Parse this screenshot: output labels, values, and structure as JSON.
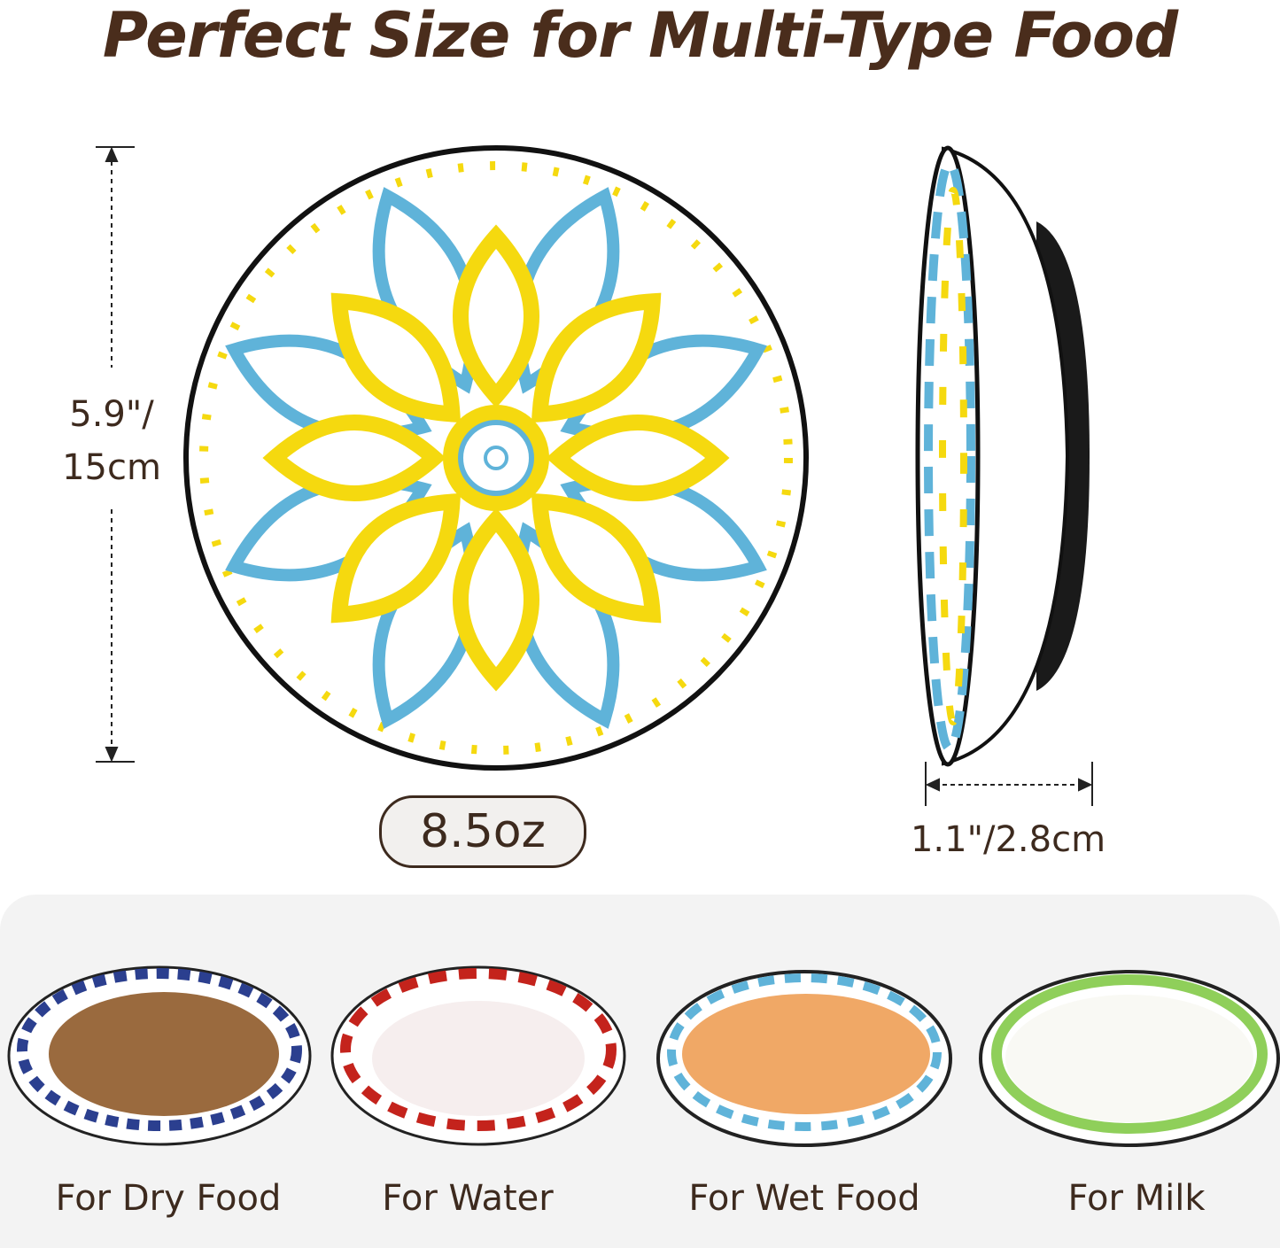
{
  "title": "Perfect Size for Multi-Type Food",
  "dimensions": {
    "height_line1": "5.9\"/",
    "height_line2": "15cm",
    "depth": "1.1\"/2.8cm",
    "capacity": "8.5oz"
  },
  "uses": [
    {
      "label": "For Dry Food"
    },
    {
      "label": "For Water"
    },
    {
      "label": "For Wet Food"
    },
    {
      "label": "For Milk"
    }
  ],
  "colors": {
    "text": "#4a2d1c",
    "pattern_yellow": "#f5d90f",
    "pattern_blue": "#5fb3d9",
    "rim": "#1a1a1a"
  }
}
